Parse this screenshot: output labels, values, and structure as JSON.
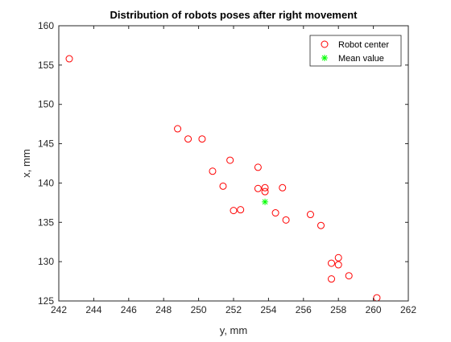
{
  "chart_data": {
    "type": "scatter",
    "title": "Distribution of robots poses after right movement",
    "xlabel": "y, mm",
    "ylabel": "x, mm",
    "xlim": [
      242,
      262
    ],
    "ylim": [
      125,
      160
    ],
    "xticks": [
      "242",
      "244",
      "246",
      "248",
      "250",
      "252",
      "254",
      "256",
      "258",
      "260",
      "262"
    ],
    "yticks": [
      "125",
      "130",
      "135",
      "140",
      "145",
      "150",
      "155",
      "160"
    ],
    "grid": false,
    "legend_position": "top-right",
    "series": [
      {
        "name": "Robot center",
        "marker": "circle",
        "color": "#ff0000",
        "points": [
          [
            242.6,
            155.8
          ],
          [
            248.8,
            146.9
          ],
          [
            249.4,
            145.6
          ],
          [
            250.2,
            145.6
          ],
          [
            250.8,
            141.5
          ],
          [
            251.4,
            139.6
          ],
          [
            251.8,
            142.9
          ],
          [
            252.0,
            136.5
          ],
          [
            252.4,
            136.6
          ],
          [
            253.4,
            142.0
          ],
          [
            253.4,
            139.3
          ],
          [
            253.8,
            139.4
          ],
          [
            253.8,
            138.9
          ],
          [
            254.4,
            136.2
          ],
          [
            254.8,
            139.4
          ],
          [
            255.0,
            135.3
          ],
          [
            256.4,
            136.0
          ],
          [
            257.0,
            134.6
          ],
          [
            257.6,
            129.8
          ],
          [
            257.6,
            127.8
          ],
          [
            258.0,
            130.5
          ],
          [
            258.0,
            129.6
          ],
          [
            258.6,
            128.2
          ],
          [
            260.2,
            125.4
          ]
        ]
      },
      {
        "name": "Mean value",
        "marker": "asterisk",
        "color": "#00ff00",
        "points": [
          [
            253.8,
            137.6
          ]
        ]
      }
    ]
  }
}
